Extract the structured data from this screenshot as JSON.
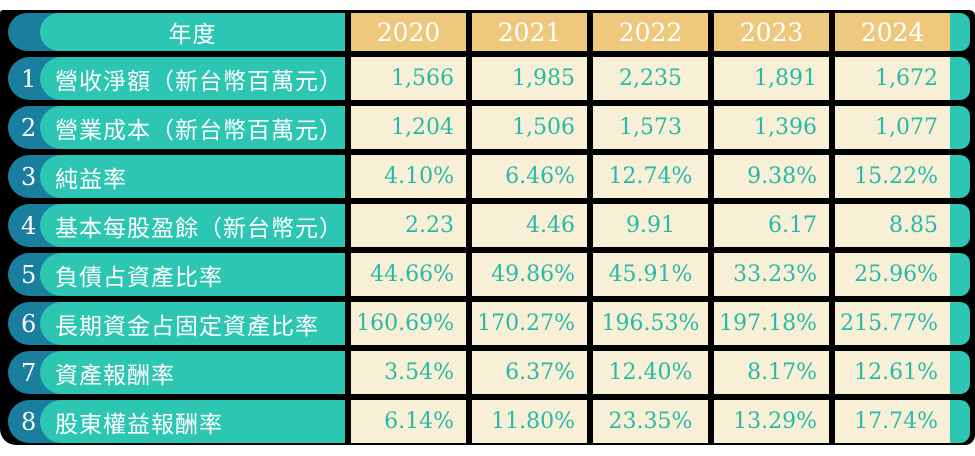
{
  "colors": {
    "dark_teal_cap": "#1a7f9e",
    "teal_pill": "#2dc6b2",
    "year_header_tan": "#eec87c",
    "value_cell_cream": "#f7efd6",
    "value_text_teal": "#29b9a8",
    "grid_black": "#000000",
    "label_text_white": "#ffffff"
  },
  "table": {
    "header": {
      "label": "年度",
      "years": [
        "2020",
        "2021",
        "2022",
        "2023",
        "2024"
      ]
    },
    "rows": [
      {
        "num": "1",
        "label": "營收淨額（新台幣百萬元）",
        "values": [
          "1,566",
          "1,985",
          "2,235",
          "1,891",
          "1,672"
        ]
      },
      {
        "num": "2",
        "label": "營業成本（新台幣百萬元）",
        "values": [
          "1,204",
          "1,506",
          "1,573",
          "1,396",
          "1,077"
        ]
      },
      {
        "num": "3",
        "label": "純益率",
        "values": [
          "4.10%",
          "6.46%",
          "12.74%",
          "9.38%",
          "15.22%"
        ]
      },
      {
        "num": "4",
        "label": "基本每股盈餘（新台幣元）",
        "values": [
          "2.23",
          "4.46",
          "9.91",
          "6.17",
          "8.85"
        ]
      },
      {
        "num": "5",
        "label": "負債占資產比率",
        "values": [
          "44.66%",
          "49.86%",
          "45.91%",
          "33.23%",
          "25.96%"
        ]
      },
      {
        "num": "6",
        "label": "長期資金占固定資產比率",
        "values": [
          "160.69%",
          "170.27%",
          "196.53%",
          "197.18%",
          "215.77%"
        ]
      },
      {
        "num": "7",
        "label": "資產報酬率",
        "values": [
          "3.54%",
          "6.37%",
          "12.40%",
          "8.17%",
          "12.61%"
        ]
      },
      {
        "num": "8",
        "label": "股東權益報酬率",
        "values": [
          "6.14%",
          "11.80%",
          "23.35%",
          "13.29%",
          "17.74%"
        ]
      }
    ]
  }
}
